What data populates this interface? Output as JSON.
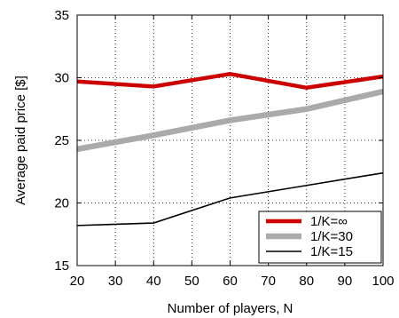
{
  "chart_data": {
    "type": "line",
    "xlabel": "Number of players, N",
    "ylabel": "Average paid price [$]",
    "xlim": [
      20,
      100
    ],
    "ylim": [
      15,
      35
    ],
    "x_ticks": [
      "20",
      "30",
      "40",
      "50",
      "60",
      "70",
      "80",
      "90",
      "100"
    ],
    "y_ticks": [
      "15",
      "20",
      "25",
      "30",
      "35"
    ],
    "grid": true,
    "grid_style": "dotted",
    "legend_position": "bottom-right",
    "x": [
      20,
      40,
      60,
      80,
      100
    ],
    "series": [
      {
        "name": "1/K=∞",
        "color": "#cc0000",
        "values": [
          29.7,
          29.3,
          30.3,
          29.2,
          30.1
        ]
      },
      {
        "name": "1/K=30",
        "color": "#aaaaaa",
        "values": [
          24.3,
          25.4,
          26.6,
          27.5,
          28.9
        ]
      },
      {
        "name": "1/K=15",
        "color": "#000000",
        "values": [
          18.2,
          18.4,
          20.4,
          21.4,
          22.4
        ]
      }
    ]
  }
}
